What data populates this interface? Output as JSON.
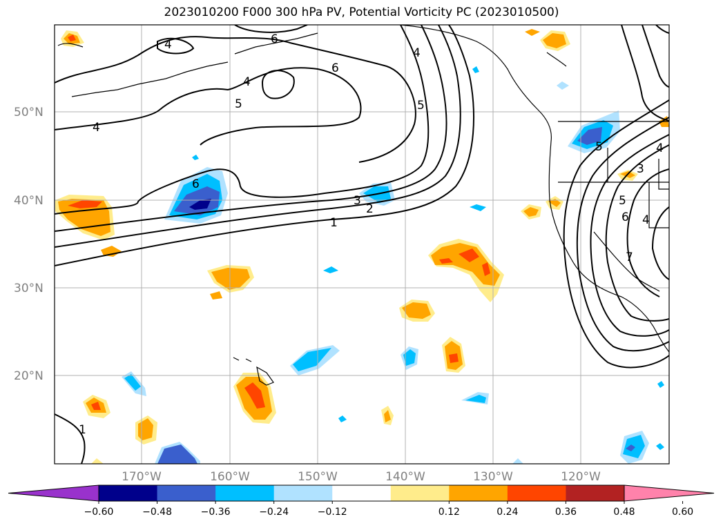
{
  "title": "2023010200 F000 300 hPa PV, Potential Vorticity PC (2023010500)",
  "lat_labels": [
    "50°N",
    "40°N",
    "30°N",
    "20°N"
  ],
  "lon_labels": [
    "170°W",
    "160°W",
    "150°W",
    "140°W",
    "130°W",
    "120°W"
  ],
  "colorbar": {
    "tick_labels": [
      "−0.60",
      "−0.48",
      "−0.36",
      "−0.24",
      "−0.12",
      "0.12",
      "0.24",
      "0.36",
      "0.48",
      "0.60"
    ],
    "colors": [
      "#9932cc",
      "#00008b",
      "#3a5fcd",
      "#00bfff",
      "#b0e2ff",
      "#ffffff",
      "#ffec8b",
      "#ffa500",
      "#ff4500",
      "#b22222",
      "#ff82ab"
    ]
  },
  "contour_labels": [
    "4",
    "6",
    "6",
    "4",
    "5",
    "4",
    "4",
    "5",
    "6",
    "5",
    "3",
    "2",
    "1",
    "4",
    "3",
    "4",
    "5",
    "6",
    "7",
    "1"
  ]
}
